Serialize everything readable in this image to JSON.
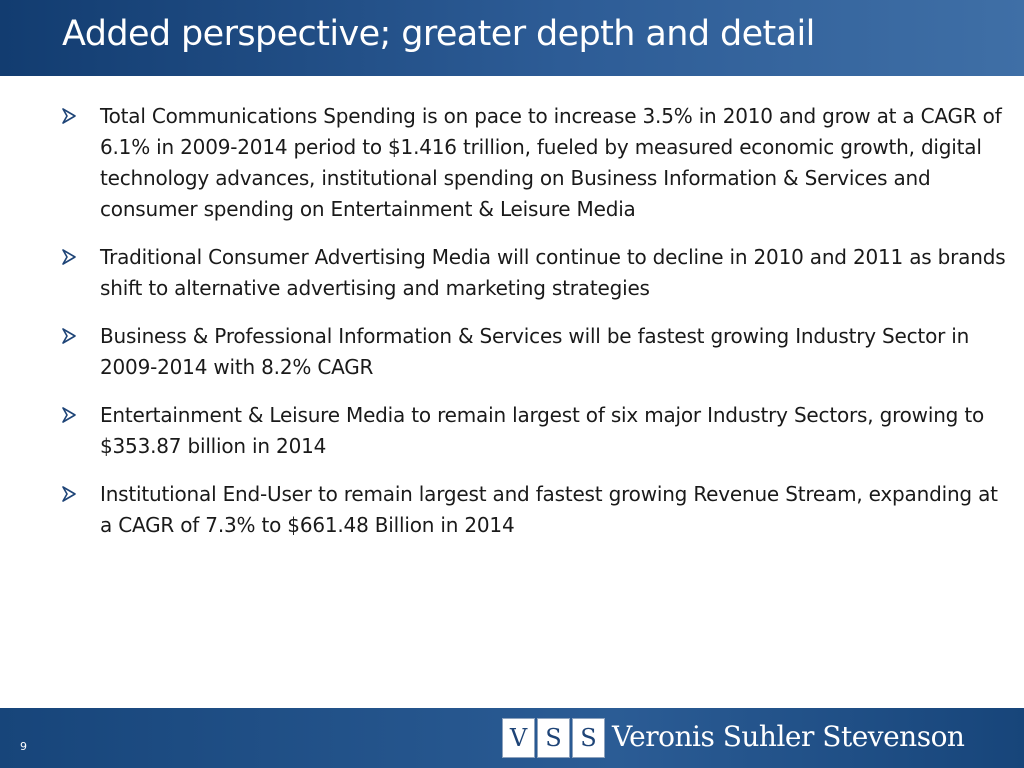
{
  "slide": {
    "title": "Added perspective; greater depth and detail",
    "bullets": [
      "Total Communications Spending is on pace to increase 3.5% in 2010 and grow at a CAGR of 6.1% in 2009-2014 period to $1.416 trillion, fueled by measured economic growth, digital technology advances, institutional spending on Business Information & Services and consumer spending on Entertainment & Leisure Media",
      "Traditional Consumer Advertising Media will continue to decline in 2010 and 2011 as brands shift to alternative advertising and marketing strategies",
      "Business & Professional Information & Services will be fastest growing Industry Sector in 2009-2014 with 8.2% CAGR",
      "Entertainment & Leisure Media to remain largest of six major Industry Sectors, growing to $353.87 billion in 2014",
      "Institutional End-User to remain largest and fastest growing Revenue Stream, expanding at a CAGR of 7.3% to $661.48 Billion in 2014"
    ],
    "bullet_icon": "arrow-bullet-icon",
    "page_number": "9"
  },
  "footer": {
    "logo_letters": [
      "V",
      "S",
      "S"
    ],
    "logo_text": "Veronis Suhler Stevenson"
  },
  "colors": {
    "title_bar": "#2d5c96",
    "footer_bar": "#2b5c95",
    "text": "#1a1a1a",
    "bullet_icon": "#1e4477"
  }
}
